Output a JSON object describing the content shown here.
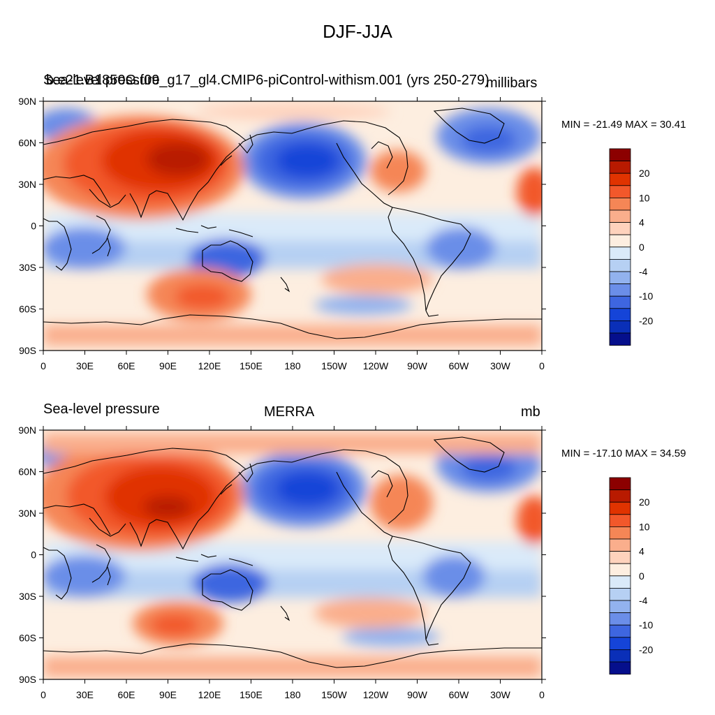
{
  "figure_title": "DJF-JJA",
  "latitude_labels": [
    "90N",
    "60N",
    "30N",
    "0",
    "30S",
    "60S",
    "90S"
  ],
  "longitude_labels": [
    "0",
    "30E",
    "60E",
    "90E",
    "120E",
    "150E",
    "180",
    "150W",
    "120W",
    "90W",
    "60W",
    "30W",
    "0"
  ],
  "colorbar": {
    "tick_labels": [
      "20",
      "10",
      "4",
      "0",
      "-4",
      "-10",
      "-20"
    ],
    "colors": [
      "#8c0000",
      "#b81a00",
      "#e03300",
      "#f2582b",
      "#f58656",
      "#faae8c",
      "#fed2bc",
      "#fdeee0",
      "#daeaf9",
      "#b6d0f3",
      "#92b2ee",
      "#6b8ee8",
      "#3e66e0",
      "#1544d8",
      "#0a2fb8",
      "#050f8c"
    ]
  },
  "panels": [
    {
      "left_title": "Sea-level pressure",
      "left_title_overlap": "b.e21.B1850G.f09_g17_gl4.CMIP6-piControl-withism.001 (yrs 250-279)",
      "center_title": "",
      "units": "millibars",
      "min_max": "MIN = -21.49 MAX =  30.41"
    },
    {
      "left_title": "Sea-level pressure",
      "left_title_overlap": "",
      "center_title": "MERRA",
      "units": "mb",
      "min_max": "MIN = -17.10 MAX =  34.59"
    }
  ]
}
